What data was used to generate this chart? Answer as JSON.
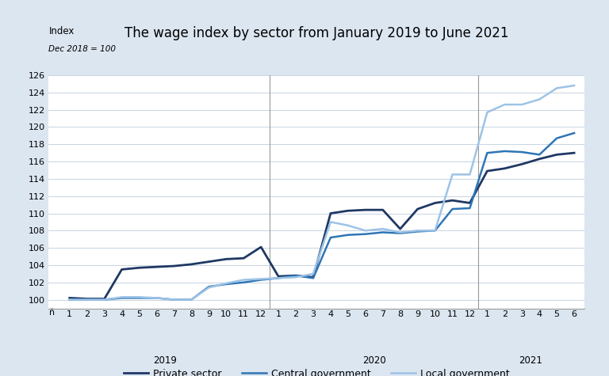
{
  "title": "The wage index by sector from January 2019 to June 2021",
  "ylabel_top": "Index",
  "ylabel_bottom": "Dec 2018 = 100",
  "ylim": [
    99,
    126
  ],
  "yticks": [
    100,
    102,
    104,
    106,
    108,
    110,
    112,
    114,
    116,
    118,
    120,
    122,
    124,
    126
  ],
  "background_color": "#dce6f1",
  "plot_background": "#ffffff",
  "private_sector": [
    100.2,
    100.1,
    100.1,
    103.5,
    103.7,
    103.8,
    103.9,
    104.1,
    104.4,
    104.7,
    104.8,
    106.1,
    102.7,
    102.8,
    102.6,
    110.0,
    110.3,
    110.4,
    110.4,
    108.2,
    110.5,
    111.2,
    111.5,
    111.2,
    114.9,
    115.2,
    115.7,
    116.3,
    116.8,
    117.0
  ],
  "central_government": [
    100.0,
    100.0,
    100.0,
    100.2,
    100.2,
    100.2,
    100.0,
    100.0,
    101.5,
    101.8,
    102.0,
    102.3,
    102.5,
    102.8,
    102.5,
    107.2,
    107.5,
    107.6,
    107.8,
    107.7,
    107.9,
    108.0,
    110.5,
    110.6,
    117.0,
    117.2,
    117.1,
    116.8,
    118.7,
    119.3
  ],
  "local_government": [
    100.0,
    100.0,
    100.0,
    100.3,
    100.3,
    100.2,
    100.0,
    100.0,
    101.4,
    101.9,
    102.3,
    102.4,
    102.5,
    102.6,
    103.0,
    109.0,
    108.6,
    108.0,
    108.2,
    107.8,
    108.0,
    108.0,
    114.5,
    114.5,
    121.7,
    122.6,
    122.6,
    123.2,
    124.5,
    124.8
  ],
  "private_color": "#1f3864",
  "central_color": "#2e75b6",
  "local_color": "#9dc3e6",
  "legend_labels": [
    "Private sector",
    "Central government",
    "Local government"
  ],
  "title_fontsize": 12,
  "tick_fontsize": 8,
  "legend_fontsize": 9
}
